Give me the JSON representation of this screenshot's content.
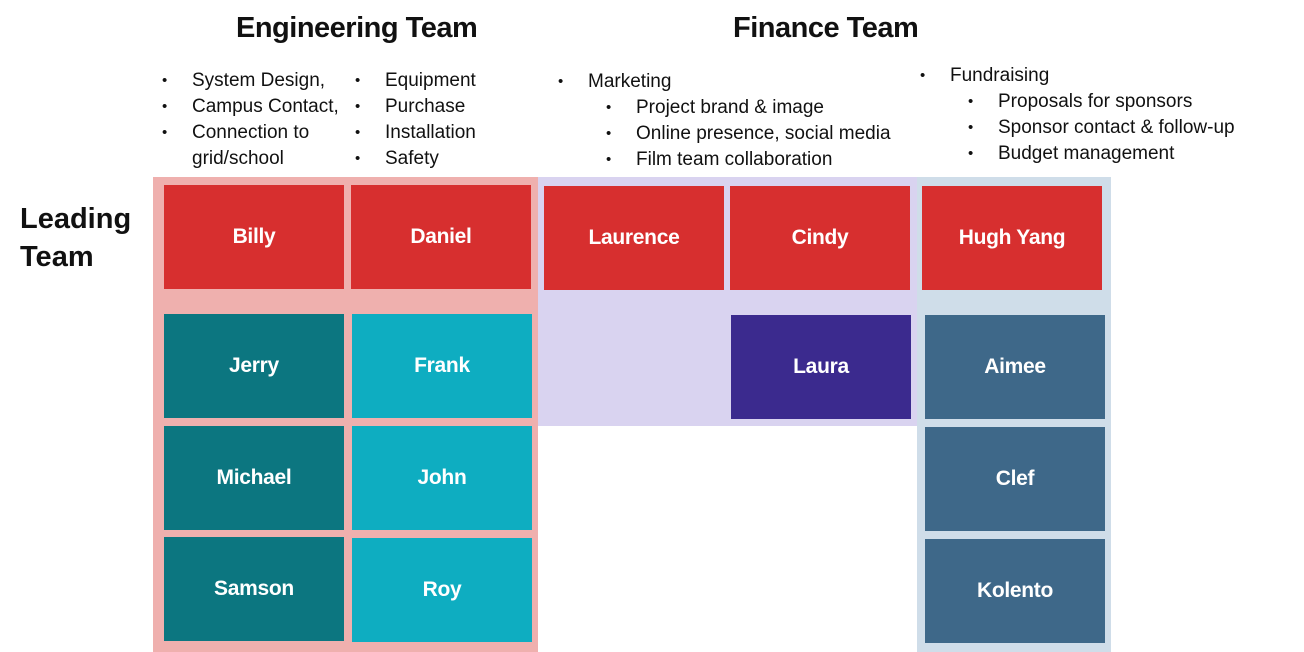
{
  "titles": {
    "engineering": "Engineering Team",
    "finance": "Finance Team",
    "leading_line1": "Leading",
    "leading_line2": "Team"
  },
  "engineering_bullets": {
    "col1": [
      "System Design,",
      "Campus Contact,",
      "Connection to",
      "grid/school"
    ],
    "col2": [
      "Equipment",
      "Purchase",
      "Installation",
      "Safety"
    ]
  },
  "marketing_bullets": {
    "main": "Marketing",
    "subs": [
      "Project brand & image",
      "Online presence, social media",
      "Film team collaboration"
    ]
  },
  "fundraising_bullets": {
    "main": "Fundraising",
    "subs": [
      "Proposals for sponsors",
      "Sponsor contact & follow-up",
      "Budget management"
    ]
  },
  "leaders": {
    "engineering": [
      "Billy",
      "Daniel"
    ],
    "marketing": [
      "Laurence",
      "Cindy"
    ],
    "fundraising": [
      "Hugh Yang"
    ]
  },
  "members": {
    "engineering_col1": [
      "Jerry",
      "Michael",
      "Samson"
    ],
    "engineering_col2": [
      "Frank",
      "John",
      "Roy"
    ],
    "marketing": [
      "Laura"
    ],
    "fundraising": [
      "Aimee",
      "Clef",
      "Kolento"
    ]
  },
  "colors": {
    "engineering_bg": "#efb0ae",
    "marketing_bg": "#d9d3f0",
    "fundraising_bg": "#cfdde9",
    "leader_box": "#d72f2f",
    "engineering_member_dark": "#0c7680",
    "engineering_member_light": "#0eadc1",
    "marketing_member": "#3b2a8e",
    "fundraising_member": "#3e6889"
  }
}
